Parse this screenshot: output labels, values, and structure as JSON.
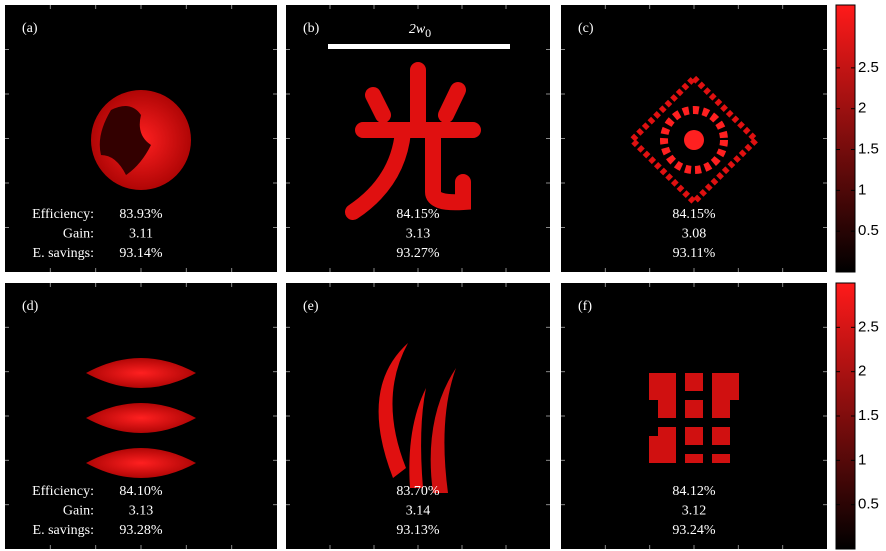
{
  "panels": [
    {
      "label": "(a)",
      "metric_labels": [
        "Efficiency:",
        "Gain:",
        "E. savings:"
      ],
      "metrics": [
        "83.93%",
        "3.11",
        "93.14%"
      ]
    },
    {
      "label": "(b)",
      "metrics": [
        "84.15%",
        "3.13",
        "93.27%"
      ]
    },
    {
      "label": "(c)",
      "metrics": [
        "84.15%",
        "3.08",
        "93.11%"
      ]
    },
    {
      "label": "(d)",
      "metric_labels": [
        "Efficiency:",
        "Gain:",
        "E. savings:"
      ],
      "metrics": [
        "84.10%",
        "3.13",
        "93.28%"
      ]
    },
    {
      "label": "(e)",
      "metrics": [
        "83.70%",
        "3.14",
        "93.13%"
      ]
    },
    {
      "label": "(f)",
      "metrics": [
        "84.12%",
        "3.12",
        "93.24%"
      ]
    }
  ],
  "scale_bar": {
    "label": "2w",
    "subscript": "0"
  },
  "colorbars": [
    {
      "clim": [
        0,
        3.27
      ],
      "ticks": [
        0.5,
        1,
        1.5,
        2,
        2.5
      ]
    },
    {
      "clim": [
        0,
        3.0
      ],
      "ticks": [
        0.5,
        1,
        1.5,
        2,
        2.5
      ]
    }
  ]
}
